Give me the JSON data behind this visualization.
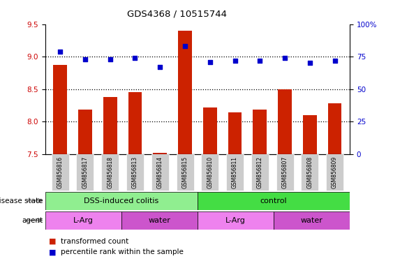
{
  "title": "GDS4368 / 10515744",
  "samples": [
    "GSM856816",
    "GSM856817",
    "GSM856818",
    "GSM856813",
    "GSM856814",
    "GSM856815",
    "GSM856810",
    "GSM856811",
    "GSM856812",
    "GSM856807",
    "GSM856808",
    "GSM856809"
  ],
  "transformed_count": [
    8.87,
    8.18,
    8.38,
    8.45,
    7.52,
    9.4,
    8.22,
    8.14,
    8.18,
    8.5,
    8.1,
    8.28
  ],
  "percentile_rank": [
    79,
    73,
    73,
    74,
    67,
    83,
    71,
    72,
    72,
    74,
    70,
    72
  ],
  "ylim_left": [
    7.5,
    9.5
  ],
  "ylim_right": [
    0,
    100
  ],
  "yticks_left": [
    7.5,
    8.0,
    8.5,
    9.0,
    9.5
  ],
  "yticks_right": [
    0,
    25,
    50,
    75,
    100
  ],
  "ytick_right_labels": [
    "0",
    "25",
    "50",
    "75",
    "100%"
  ],
  "disease_state": [
    {
      "label": "DSS-induced colitis",
      "span": [
        0,
        6
      ],
      "color": "#90ee90"
    },
    {
      "label": "control",
      "span": [
        6,
        12
      ],
      "color": "#44dd44"
    }
  ],
  "agent": [
    {
      "label": "L-Arg",
      "span": [
        0,
        3
      ],
      "color": "#ee82ee"
    },
    {
      "label": "water",
      "span": [
        3,
        6
      ],
      "color": "#cc55cc"
    },
    {
      "label": "L-Arg",
      "span": [
        6,
        9
      ],
      "color": "#ee82ee"
    },
    {
      "label": "water",
      "span": [
        9,
        12
      ],
      "color": "#cc55cc"
    }
  ],
  "bar_color": "#cc2200",
  "dot_color": "#0000cc",
  "bar_width": 0.55,
  "background_color": "#ffffff",
  "label_color_left": "#cc0000",
  "label_color_right": "#0000cc",
  "tick_label_bg": "#cccccc",
  "gridline_color": "#000000"
}
